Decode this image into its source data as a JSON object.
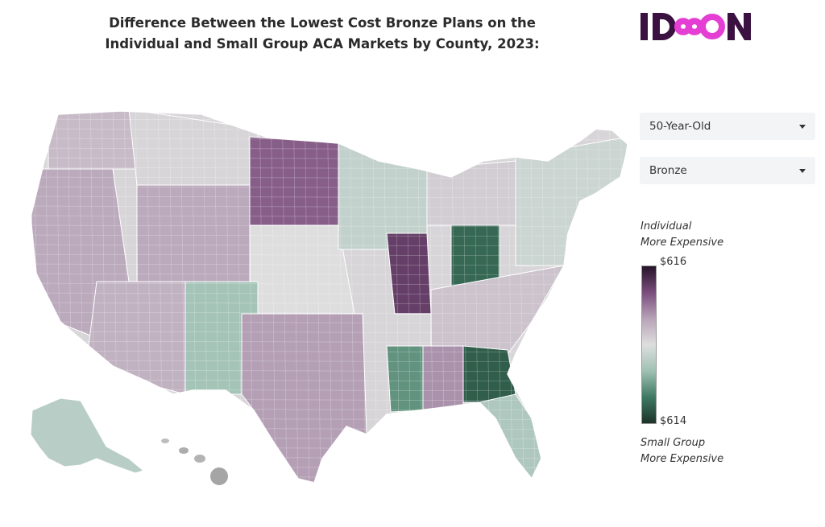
{
  "title": {
    "line1": "Difference Between the Lowest Cost Bronze Plans on the",
    "line2": "Individual and Small Group ACA Markets by County, 2023:"
  },
  "logo": {
    "text": "IDEON",
    "colors": {
      "dark": "#3a1140",
      "accent": "#e43ed4"
    }
  },
  "controls": {
    "age": {
      "selected": "50-Year-Old"
    },
    "metal": {
      "selected": "Bronze"
    }
  },
  "legend": {
    "top_label_1": "Individual",
    "top_label_2": "More Expensive",
    "max_value": "$616",
    "min_value": "$614",
    "bottom_label_1": "Small Group",
    "bottom_label_2": "More Expensive",
    "colors": [
      "#1c3228",
      "#3f7a63",
      "#9fc1b4",
      "#dedede",
      "#b7a3b8",
      "#7a4d7c",
      "#251429"
    ]
  },
  "map_regions": [
    {
      "name": "pacific-northwest",
      "level": 0.2
    },
    {
      "name": "california-nevada",
      "level": 0.3
    },
    {
      "name": "southwest",
      "level": 0.25
    },
    {
      "name": "rockies-north",
      "level": 0.05
    },
    {
      "name": "wyoming-colorado",
      "level": 0.3
    },
    {
      "name": "dakotas",
      "level": 0.6
    },
    {
      "name": "plains",
      "level": 0.0
    },
    {
      "name": "new-mexico",
      "level": -0.3
    },
    {
      "name": "texas-oklahoma",
      "level": 0.35
    },
    {
      "name": "upper-midwest",
      "level": -0.15
    },
    {
      "name": "illinois",
      "level": 0.75
    },
    {
      "name": "ohio",
      "level": -0.75
    },
    {
      "name": "great-lakes-east",
      "level": 0.1
    },
    {
      "name": "northeast",
      "level": -0.1
    },
    {
      "name": "southeast",
      "level": 0.15
    },
    {
      "name": "mississippi",
      "level": -0.55
    },
    {
      "name": "alabama",
      "level": 0.4
    },
    {
      "name": "georgia",
      "level": -0.8
    },
    {
      "name": "florida",
      "level": -0.25
    },
    {
      "name": "alaska",
      "level": -0.2
    },
    {
      "name": "hawaii",
      "level": 0.0
    }
  ]
}
